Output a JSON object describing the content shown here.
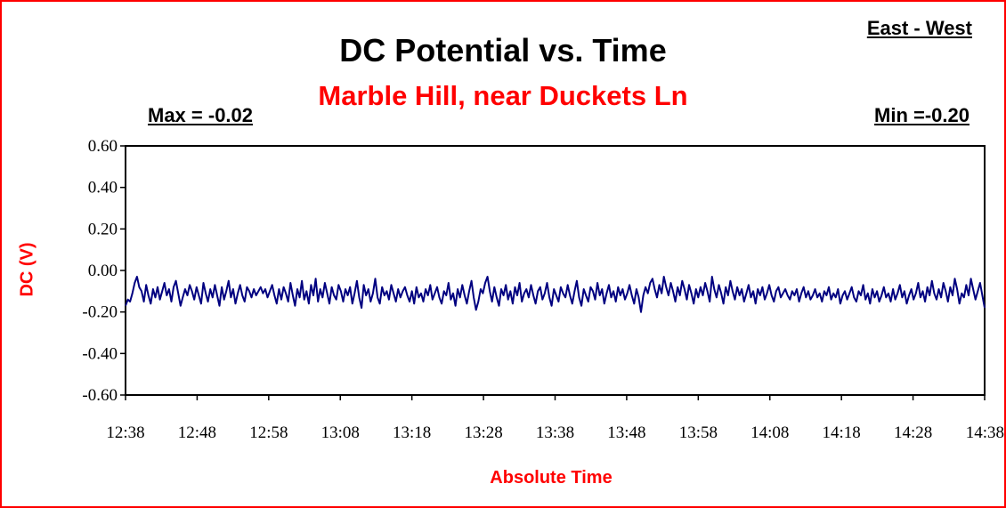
{
  "chart_data": {
    "type": "line",
    "title": "DC Potential vs. Time",
    "subtitle": "Marble Hill, near Duckets Ln",
    "direction_label": "East - West",
    "max_label": "Max = -0.02",
    "min_label": "Min =-0.20",
    "xlabel": "Absolute Time",
    "ylabel": "DC (V)",
    "ylim": [
      -0.6,
      0.6
    ],
    "yticks": [
      "0.60",
      "0.40",
      "0.20",
      "0.00",
      "-0.20",
      "-0.40",
      "-0.60"
    ],
    "xticks": [
      "12:38",
      "12:48",
      "12:58",
      "13:08",
      "13:18",
      "13:28",
      "13:38",
      "13:48",
      "13:58",
      "14:08",
      "14:18",
      "14:28",
      "14:38"
    ],
    "grid": false,
    "colors": {
      "line": "#000080",
      "accent": "#ff0000",
      "frame": "#ff0000"
    },
    "series": [
      {
        "x_start": "12:38",
        "x_end": "14:38",
        "values": [
          -0.17,
          -0.14,
          -0.15,
          -0.11,
          -0.06,
          -0.03,
          -0.08,
          -0.1,
          -0.15,
          -0.07,
          -0.12,
          -0.16,
          -0.09,
          -0.13,
          -0.08,
          -0.14,
          -0.1,
          -0.06,
          -0.12,
          -0.09,
          -0.15,
          -0.08,
          -0.05,
          -0.11,
          -0.17,
          -0.13,
          -0.09,
          -0.12,
          -0.07,
          -0.1,
          -0.14,
          -0.08,
          -0.12,
          -0.16,
          -0.06,
          -0.11,
          -0.15,
          -0.09,
          -0.13,
          -0.07,
          -0.12,
          -0.17,
          -0.08,
          -0.14,
          -0.1,
          -0.05,
          -0.13,
          -0.09,
          -0.16,
          -0.11,
          -0.07,
          -0.12,
          -0.15,
          -0.08,
          -0.1,
          -0.13,
          -0.09,
          -0.12,
          -0.1,
          -0.08,
          -0.11,
          -0.09,
          -0.13,
          -0.1,
          -0.07,
          -0.12,
          -0.16,
          -0.09,
          -0.14,
          -0.08,
          -0.11,
          -0.15,
          -0.06,
          -0.12,
          -0.17,
          -0.09,
          -0.13,
          -0.05,
          -0.14,
          -0.1,
          -0.16,
          -0.07,
          -0.12,
          -0.04,
          -0.15,
          -0.09,
          -0.13,
          -0.06,
          -0.11,
          -0.16,
          -0.08,
          -0.12,
          -0.14,
          -0.07,
          -0.1,
          -0.15,
          -0.09,
          -0.12,
          -0.08,
          -0.16,
          -0.11,
          -0.05,
          -0.13,
          -0.18,
          -0.07,
          -0.12,
          -0.09,
          -0.15,
          -0.11,
          -0.04,
          -0.13,
          -0.16,
          -0.08,
          -0.12,
          -0.1,
          -0.14,
          -0.07,
          -0.11,
          -0.15,
          -0.09,
          -0.13,
          -0.1,
          -0.08,
          -0.12,
          -0.15,
          -0.1,
          -0.16,
          -0.08,
          -0.13,
          -0.11,
          -0.15,
          -0.09,
          -0.12,
          -0.07,
          -0.14,
          -0.11,
          -0.08,
          -0.13,
          -0.16,
          -0.1,
          -0.12,
          -0.06,
          -0.14,
          -0.11,
          -0.17,
          -0.09,
          -0.13,
          -0.07,
          -0.12,
          -0.16,
          -0.1,
          -0.05,
          -0.13,
          -0.19,
          -0.15,
          -0.09,
          -0.11,
          -0.06,
          -0.03,
          -0.1,
          -0.15,
          -0.08,
          -0.13,
          -0.17,
          -0.09,
          -0.12,
          -0.07,
          -0.14,
          -0.1,
          -0.16,
          -0.08,
          -0.12,
          -0.06,
          -0.15,
          -0.11,
          -0.09,
          -0.13,
          -0.07,
          -0.12,
          -0.16,
          -0.1,
          -0.08,
          -0.14,
          -0.11,
          -0.06,
          -0.13,
          -0.17,
          -0.09,
          -0.12,
          -0.15,
          -0.08,
          -0.11,
          -0.13,
          -0.07,
          -0.12,
          -0.16,
          -0.1,
          -0.05,
          -0.13,
          -0.17,
          -0.09,
          -0.12,
          -0.15,
          -0.08,
          -0.1,
          -0.14,
          -0.06,
          -0.12,
          -0.09,
          -0.16,
          -0.11,
          -0.07,
          -0.13,
          -0.1,
          -0.15,
          -0.08,
          -0.12,
          -0.09,
          -0.14,
          -0.11,
          -0.07,
          -0.12,
          -0.16,
          -0.09,
          -0.13,
          -0.2,
          -0.12,
          -0.08,
          -0.11,
          -0.06,
          -0.04,
          -0.09,
          -0.13,
          -0.07,
          -0.11,
          -0.03,
          -0.08,
          -0.12,
          -0.06,
          -0.1,
          -0.15,
          -0.08,
          -0.12,
          -0.05,
          -0.09,
          -0.14,
          -0.07,
          -0.11,
          -0.16,
          -0.09,
          -0.13,
          -0.08,
          -0.12,
          -0.06,
          -0.1,
          -0.15,
          -0.03,
          -0.09,
          -0.13,
          -0.07,
          -0.11,
          -0.16,
          -0.08,
          -0.12,
          -0.05,
          -0.1,
          -0.14,
          -0.08,
          -0.12,
          -0.09,
          -0.15,
          -0.11,
          -0.07,
          -0.13,
          -0.1,
          -0.16,
          -0.09,
          -0.12,
          -0.08,
          -0.14,
          -0.11,
          -0.07,
          -0.12,
          -0.15,
          -0.1,
          -0.08,
          -0.13,
          -0.11,
          -0.09,
          -0.12,
          -0.14,
          -0.1,
          -0.12,
          -0.09,
          -0.15,
          -0.11,
          -0.08,
          -0.13,
          -0.1,
          -0.14,
          -0.12,
          -0.09,
          -0.13,
          -0.11,
          -0.15,
          -0.1,
          -0.12,
          -0.08,
          -0.14,
          -0.11,
          -0.13,
          -0.09,
          -0.16,
          -0.12,
          -0.1,
          -0.14,
          -0.11,
          -0.08,
          -0.13,
          -0.15,
          -0.1,
          -0.12,
          -0.07,
          -0.14,
          -0.11,
          -0.16,
          -0.09,
          -0.13,
          -0.1,
          -0.15,
          -0.12,
          -0.08,
          -0.13,
          -0.11,
          -0.15,
          -0.09,
          -0.14,
          -0.11,
          -0.07,
          -0.13,
          -0.1,
          -0.16,
          -0.12,
          -0.09,
          -0.14,
          -0.11,
          -0.06,
          -0.13,
          -0.1,
          -0.15,
          -0.08,
          -0.12,
          -0.05,
          -0.11,
          -0.14,
          -0.09,
          -0.13,
          -0.06,
          -0.1,
          -0.15,
          -0.08,
          -0.12,
          -0.04,
          -0.09,
          -0.16,
          -0.11,
          -0.13,
          -0.07,
          -0.12,
          -0.04,
          -0.09,
          -0.14,
          -0.1,
          -0.06,
          -0.12,
          -0.18
        ]
      }
    ]
  }
}
